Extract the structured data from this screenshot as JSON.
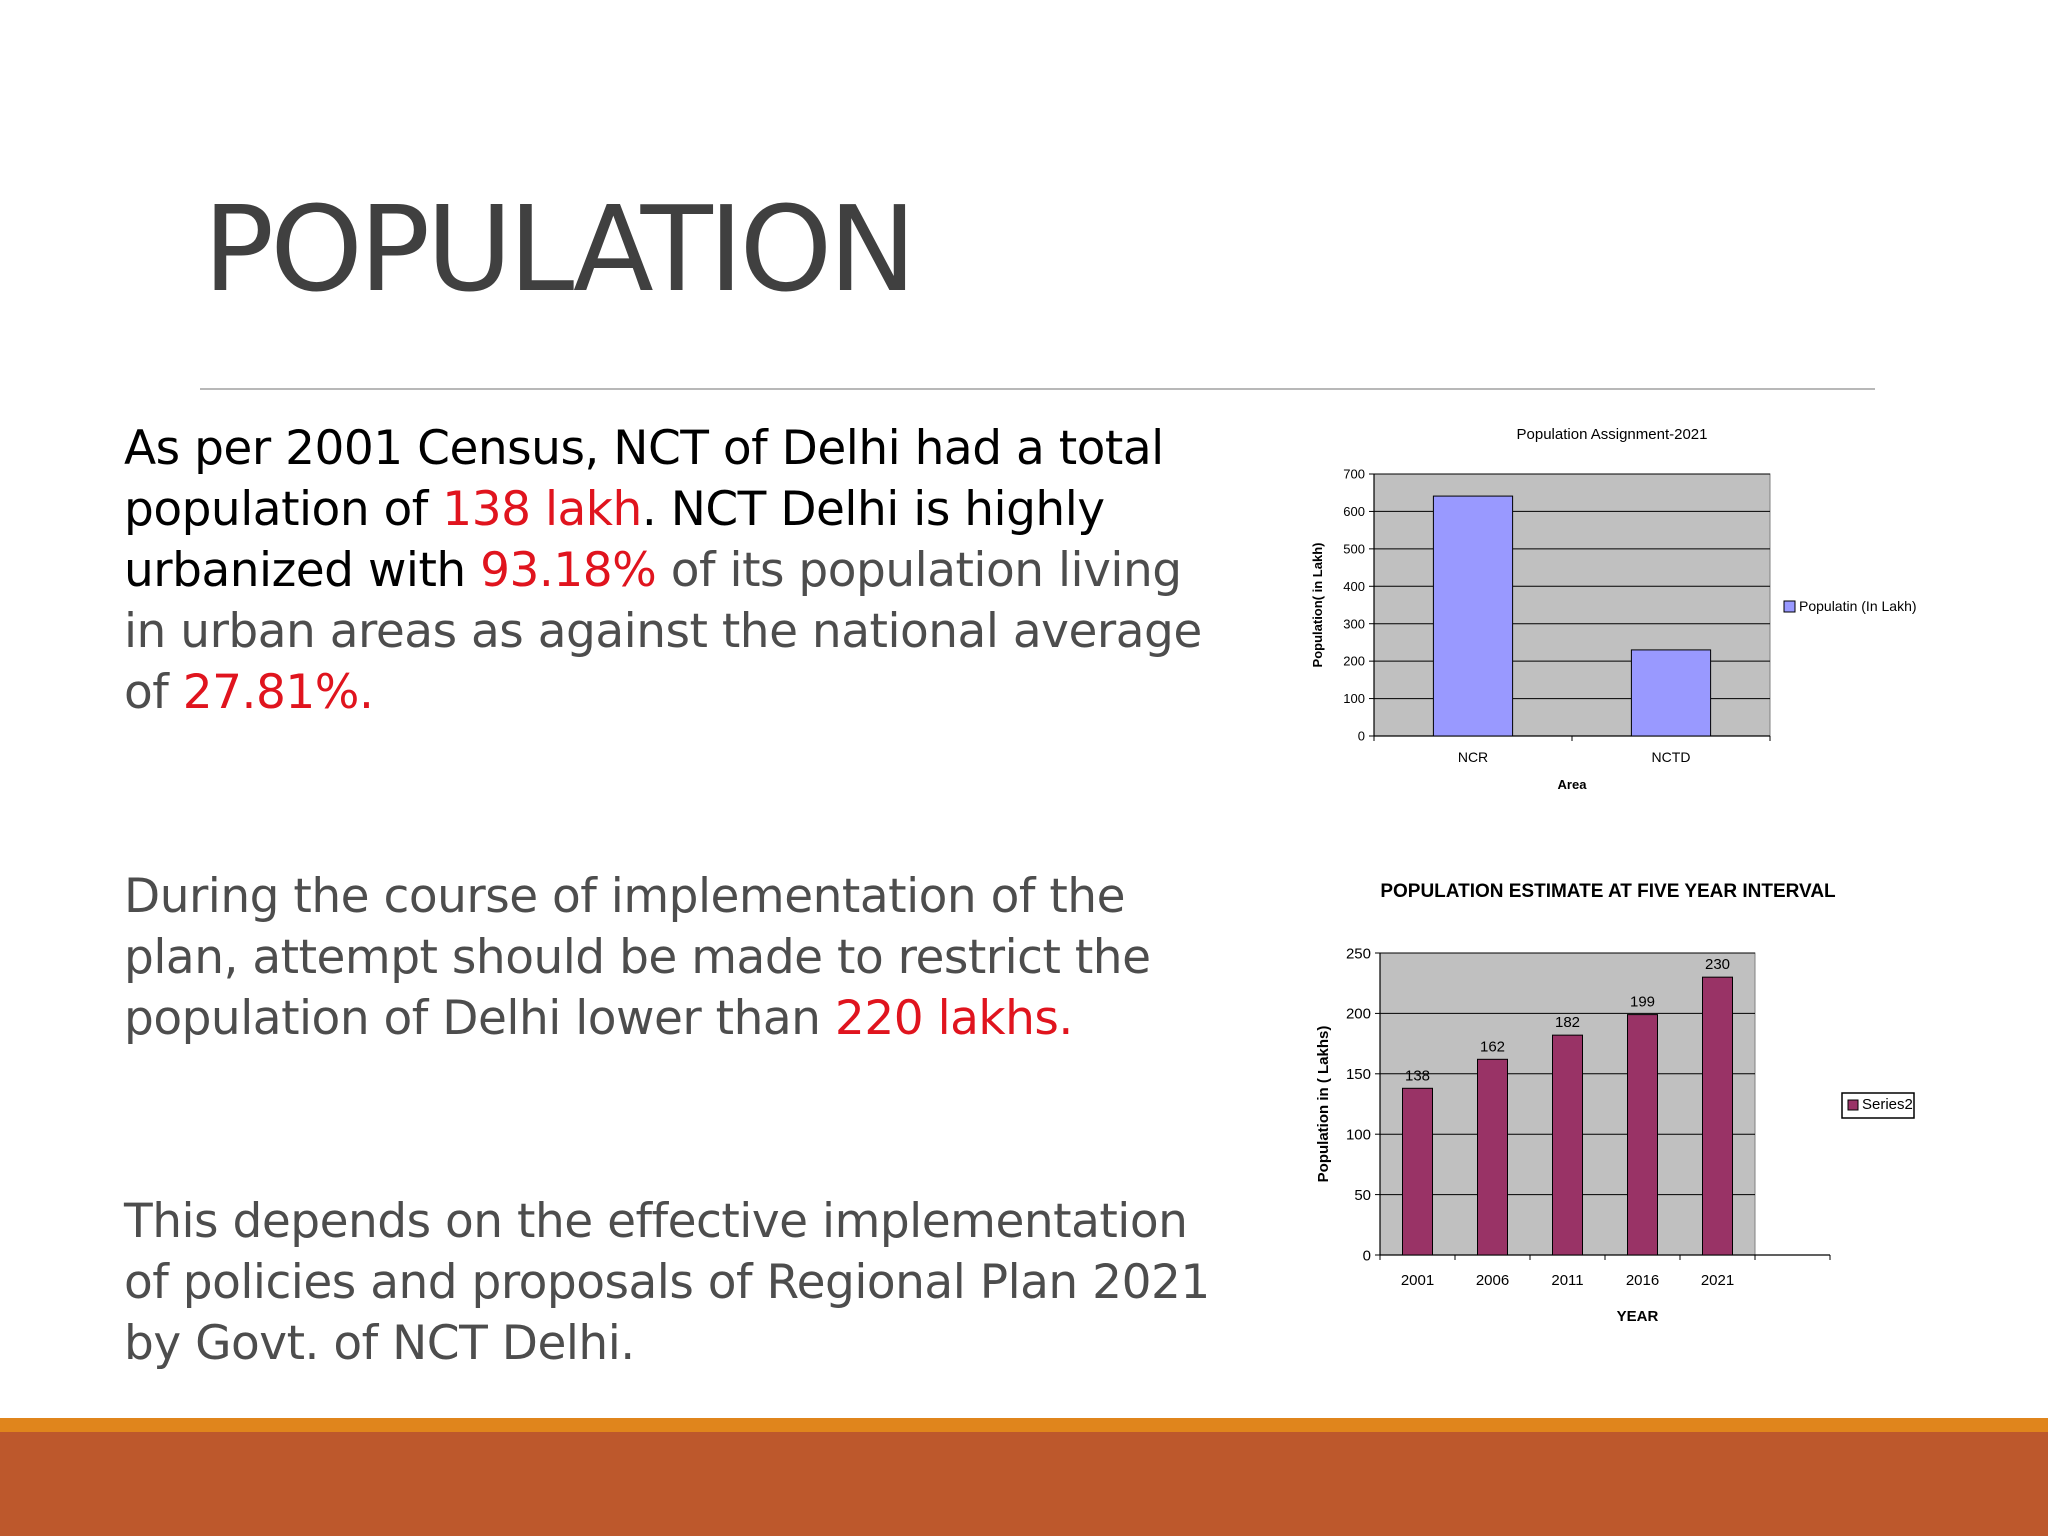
{
  "slide": {
    "title": "POPULATION",
    "para1": {
      "s1": "As per 2001 Census, NCT of Delhi had a total population of ",
      "s2": "138 lakh",
      "s3": ". NCT Delhi is highly urbanized with ",
      "s4": "93.18%",
      "s5": " of its population living in urban areas as against the national average of ",
      "s6": "27.81%."
    },
    "para2": {
      "s1": "During the course of implementation of the plan, attempt should be made to restrict the population of Delhi lower than ",
      "s2": "220 lakhs."
    },
    "para3": {
      "s1": "This depends on the effective implementation of policies and proposals of Regional Plan 2021 by Govt. of NCT Delhi."
    }
  },
  "colors": {
    "text": "#4d4d4d",
    "highlight": "#e0141e",
    "footer_orange": "#e0851c",
    "footer_rust": "#bd582c"
  },
  "chart_data": [
    {
      "type": "bar",
      "title": "Population Assignment-2021",
      "xlabel": "Area",
      "ylabel": "Population( in Lakh)",
      "categories": [
        "NCR",
        "NCTD"
      ],
      "series": [
        {
          "name": "Populatin (In Lakh)",
          "values": [
            641,
            230
          ]
        }
      ],
      "ylim": [
        0,
        700
      ],
      "yticks": [
        0,
        100,
        200,
        300,
        400,
        500,
        600,
        700
      ],
      "grid": true,
      "legend": "right",
      "bar_color": "#9999ff",
      "plot_bg": "#c0c0c0",
      "show_data_labels": false
    },
    {
      "type": "bar",
      "title": "POPULATION ESTIMATE AT FIVE YEAR INTERVAL",
      "xlabel": "YEAR",
      "ylabel": "Population in ( Lakhs)",
      "categories": [
        "2001",
        "2006",
        "2011",
        "2016",
        "2021"
      ],
      "series": [
        {
          "name": "Series2",
          "values": [
            138,
            162,
            182,
            199,
            230
          ]
        }
      ],
      "ylim": [
        0,
        250
      ],
      "yticks": [
        0,
        50,
        100,
        150,
        200,
        250
      ],
      "grid": true,
      "legend": "right",
      "bar_color": "#993366",
      "plot_bg": "#c0c0c0",
      "show_data_labels": true
    }
  ]
}
